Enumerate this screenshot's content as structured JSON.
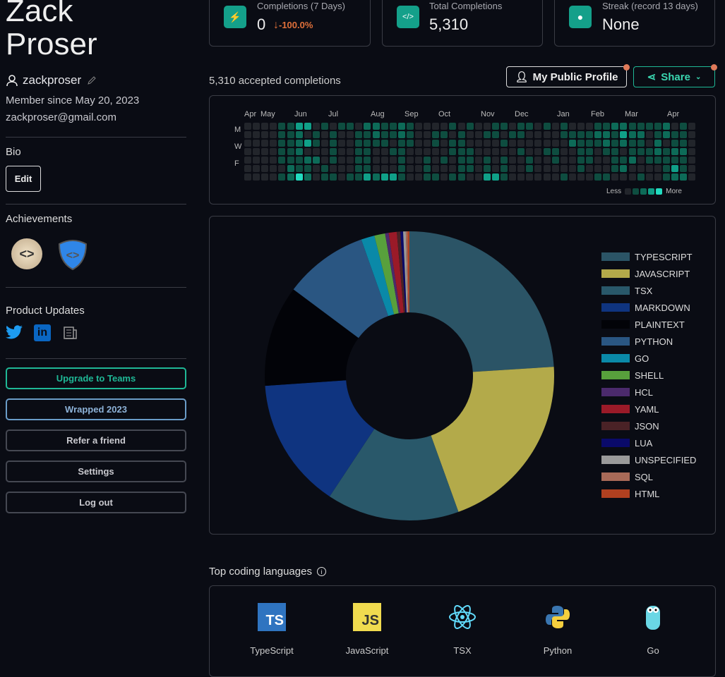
{
  "profile": {
    "name_line1": "Zack",
    "name_line2": "Proser",
    "username": "zackproser",
    "member_since": "Member since May 20, 2023",
    "email": "zackproser@gmail.com"
  },
  "bio": {
    "title": "Bio",
    "edit_label": "Edit"
  },
  "achievements": {
    "title": "Achievements"
  },
  "product_updates": {
    "title": "Product Updates",
    "icons": [
      "twitter-icon",
      "linkedin-icon",
      "newspaper-icon"
    ]
  },
  "buttons": {
    "upgrade": "Upgrade to Teams",
    "wrapped": "Wrapped 2023",
    "refer": "Refer a friend",
    "settings": "Settings",
    "logout": "Log out"
  },
  "stats": [
    {
      "label": "Completions (7 Days)",
      "value": "0",
      "change": "-100.0%",
      "icon": "bolt-icon"
    },
    {
      "label": "Total Completions",
      "value": "5,310",
      "icon": "code-icon"
    },
    {
      "label": "Streak (record 13 days)",
      "value": "None",
      "icon": "flame-icon"
    }
  ],
  "accepted": "5,310 accepted completions",
  "actions": {
    "profile": "My Public Profile",
    "share": "Share"
  },
  "heatmap": {
    "months": [
      "Apr",
      "May",
      "Jun",
      "Jul",
      "Aug",
      "Sep",
      "Oct",
      "Nov",
      "Dec",
      "Jan",
      "Feb",
      "Mar",
      "Apr"
    ],
    "days": [
      "M",
      "W",
      "F"
    ],
    "legend_less": "Less",
    "legend_more": "More",
    "colors": [
      "#22252b",
      "#0e4d40",
      "#0d6b58",
      "#10a088",
      "#22dcc0"
    ],
    "rows": [
      "00001133010110221121000010100110110101000112211112010",
      "00001120101001121121001101001101100001111221322012110",
      "00001123101001111011001011000010000000211121211020110",
      "00001120001001100110000011100000100110011011011121220",
      "00001112201001100010010101101010010010011001120111110",
      "00000211010001100010010001101010010000010001200001310",
      "00001242011011323310011011003310000001000110001001220"
    ]
  },
  "chart_data": {
    "type": "pie",
    "donut": true,
    "categories": [
      "TYPESCRIPT",
      "JAVASCRIPT",
      "TSX",
      "MARKDOWN",
      "PLAINTEXT",
      "PYTHON",
      "GO",
      "SHELL",
      "HCL",
      "YAML",
      "JSON",
      "LUA",
      "UNSPECIFIED",
      "SQL",
      "HTML"
    ],
    "values": [
      24.0,
      20.5,
      14.8,
      14.6,
      11.3,
      9.4,
      1.5,
      1.2,
      0.4,
      0.9,
      0.4,
      0.3,
      0.3,
      0.2,
      0.2
    ],
    "colors": [
      "#2b5466",
      "#b3aa4a",
      "#29586a",
      "#0f3480",
      "#020308",
      "#2a5682",
      "#0a89a8",
      "#58a03c",
      "#4b2a6c",
      "#9a1a28",
      "#4a2226",
      "#0a0a6a",
      "#9a9a9a",
      "#a86a58",
      "#b04020"
    ],
    "legend_position": "right"
  },
  "top_languages": {
    "title": "Top coding languages",
    "items": [
      "TypeScript",
      "JavaScript",
      "TSX",
      "Python",
      "Go"
    ]
  }
}
